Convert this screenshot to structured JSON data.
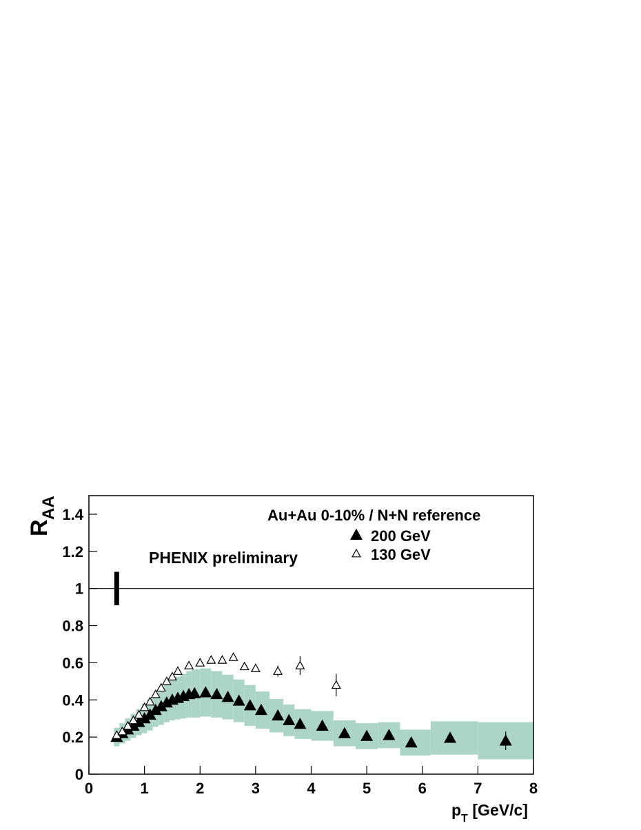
{
  "chart_data": {
    "type": "scatter",
    "annotation": "PHENIX preliminary",
    "legend_title": "Au+Au 0-10% / N+N reference",
    "y_label": {
      "main": "R",
      "sub": "AA"
    },
    "x_label": {
      "main": "p",
      "sub": "T",
      "rest": " [GeV/c]"
    },
    "xlim": [
      0,
      8
    ],
    "ylim": [
      0,
      1.5
    ],
    "xticks": [
      0,
      1,
      2,
      3,
      4,
      5,
      6,
      7,
      8
    ],
    "yticks": [
      0,
      0.2,
      0.4,
      0.6,
      0.8,
      1,
      1.2,
      1.4
    ],
    "reference_line": 1,
    "normalization": {
      "x": 0.5,
      "error": 0.09
    },
    "band_color": "#acd5c8",
    "series": [
      {
        "name": "200 GeV",
        "marker": "filled-triangle",
        "color": "#000000",
        "x": [
          0.5,
          0.6,
          0.7,
          0.8,
          0.9,
          1.0,
          1.1,
          1.2,
          1.3,
          1.4,
          1.5,
          1.6,
          1.7,
          1.8,
          1.9,
          2.1,
          2.3,
          2.5,
          2.7,
          2.9,
          3.1,
          3.4,
          3.6,
          3.8,
          4.2,
          4.6,
          5.0,
          5.4,
          5.8,
          6.5,
          7.5
        ],
        "values": [
          0.2,
          0.22,
          0.24,
          0.26,
          0.28,
          0.3,
          0.32,
          0.345,
          0.365,
          0.385,
          0.4,
          0.41,
          0.42,
          0.43,
          0.435,
          0.44,
          0.43,
          0.415,
          0.395,
          0.37,
          0.345,
          0.315,
          0.29,
          0.27,
          0.26,
          0.22,
          0.205,
          0.21,
          0.17,
          0.195,
          0.18
        ],
        "errors": [
          0.005,
          0.005,
          0.005,
          0.005,
          0.005,
          0.005,
          0.005,
          0.005,
          0.005,
          0.005,
          0.005,
          0.005,
          0.005,
          0.005,
          0.005,
          0.005,
          0.005,
          0.005,
          0.005,
          0.005,
          0.005,
          0.006,
          0.006,
          0.007,
          0.008,
          0.01,
          0.01,
          0.012,
          0.015,
          0.02,
          0.05
        ],
        "syst": [
          0.05,
          0.055,
          0.06,
          0.065,
          0.07,
          0.08,
          0.085,
          0.09,
          0.1,
          0.105,
          0.11,
          0.115,
          0.12,
          0.125,
          0.13,
          0.13,
          0.125,
          0.12,
          0.115,
          0.11,
          0.1,
          0.09,
          0.085,
          0.08,
          0.08,
          0.07,
          0.07,
          0.07,
          0.07,
          0.09,
          0.1
        ]
      },
      {
        "name": "130 GeV",
        "marker": "open-triangle",
        "color": "#000000",
        "x": [
          0.5,
          0.6,
          0.7,
          0.8,
          0.9,
          1.0,
          1.1,
          1.2,
          1.3,
          1.4,
          1.5,
          1.6,
          1.8,
          2.0,
          2.2,
          2.4,
          2.6,
          2.8,
          3.0,
          3.4,
          3.8,
          4.45
        ],
        "values": [
          0.21,
          0.23,
          0.26,
          0.29,
          0.32,
          0.36,
          0.39,
          0.43,
          0.465,
          0.5,
          0.525,
          0.555,
          0.585,
          0.6,
          0.615,
          0.615,
          0.63,
          0.58,
          0.57,
          0.555,
          0.585,
          0.48
        ],
        "errors": [
          0.005,
          0.005,
          0.005,
          0.005,
          0.005,
          0.005,
          0.005,
          0.005,
          0.005,
          0.005,
          0.005,
          0.005,
          0.008,
          0.008,
          0.01,
          0.01,
          0.012,
          0.02,
          0.02,
          0.03,
          0.05,
          0.06
        ]
      }
    ]
  }
}
